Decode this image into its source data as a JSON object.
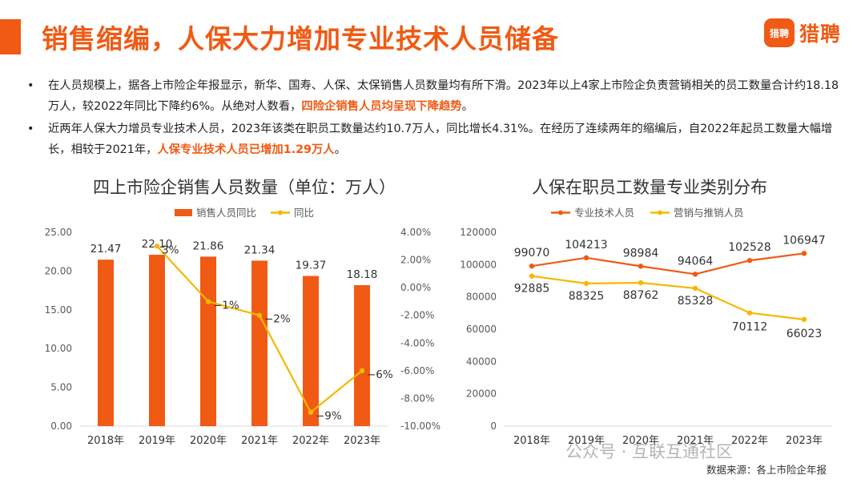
{
  "header": {
    "title": "销售缩编，人保大力增加专业技术人员储备",
    "logo_badge": "猎聘",
    "logo_text": "猎聘"
  },
  "bullets": [
    {
      "marker": "•",
      "text": "在人员规模上，据各上市险企年报显示，新华、国寿、人保、太保销售人员数量均有所下滑。2023年以上4家上市险企负责营销相关的员工数量合计约18.18万人，较2022年同比下降约6%。从绝对人数看，",
      "highlight": "四险企销售人员均呈现下降趋势",
      "tail": "。"
    },
    {
      "marker": "•",
      "text": "近两年人保大力增员专业技术人员，2023年该类在职员工数量达约10.7万人，同比增长4.31%。在经历了连续两年的缩编后，自2022年起员工数量大幅增长，相较于2021年，",
      "highlight": "人保专业技术人员已增加1.29万人",
      "tail": "。"
    }
  ],
  "left_chart_title": "四上市险企销售人员数量（单位：万人）",
  "right_chart_title": "人保在职员工数量专业类别分布",
  "footer": {
    "source": "数据来源：各上市险企年报",
    "watermark": "公众号 · 互联互通社区"
  },
  "colors": {
    "orange": "#f05a14",
    "yellow": "#f5b800",
    "gray_text": "#595959"
  },
  "chart_data": [
    {
      "type": "bar",
      "title": "四上市险企销售人员数量（单位：万人）",
      "categories": [
        "2018年",
        "2019年",
        "2020年",
        "2021年",
        "2022年",
        "2023年"
      ],
      "series": [
        {
          "name": "销售人员同比",
          "type": "bar",
          "axis": "left",
          "values": [
            21.47,
            22.1,
            21.86,
            21.34,
            19.37,
            18.18
          ],
          "labels": [
            "21.47",
            "22.10",
            "21.86",
            "21.34",
            "19.37",
            "18.18"
          ]
        },
        {
          "name": "同比",
          "type": "line",
          "axis": "right",
          "values": [
            null,
            3,
            -1,
            -2,
            -9,
            -6
          ],
          "labels": [
            "",
            "3%",
            "−1%",
            "−2%",
            "−9%",
            "−6%"
          ]
        }
      ],
      "y_left": {
        "min": 0,
        "max": 25,
        "ticks": [
          "0.00",
          "5.00",
          "10.00",
          "15.00",
          "20.00",
          "25.00"
        ]
      },
      "y_right": {
        "min": -10,
        "max": 4,
        "ticks": [
          "-10.00%",
          "-8.00%",
          "-6.00%",
          "-4.00%",
          "-2.00%",
          "0.00%",
          "2.00%",
          "4.00%"
        ]
      },
      "legend_position": "top-center"
    },
    {
      "type": "line",
      "title": "人保在职员工数量专业类别分布",
      "categories": [
        "2018年",
        "2019年",
        "2020年",
        "2021年",
        "2022年",
        "2023年"
      ],
      "series": [
        {
          "name": "专业技术人员",
          "values": [
            99070,
            104213,
            98984,
            94064,
            102528,
            106947
          ]
        },
        {
          "name": "营销与推销人员",
          "values": [
            92885,
            88325,
            88762,
            85328,
            70112,
            66023
          ]
        }
      ],
      "y": {
        "min": 0,
        "max": 120000,
        "ticks": [
          "0",
          "20000",
          "40000",
          "60000",
          "80000",
          "100000",
          "120000"
        ]
      },
      "legend_position": "top-center"
    }
  ]
}
